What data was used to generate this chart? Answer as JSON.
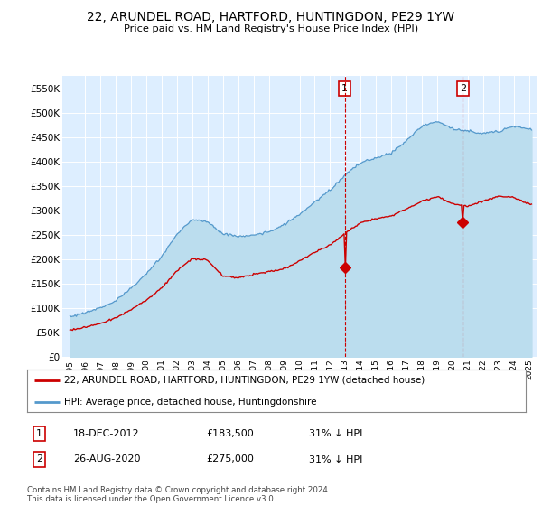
{
  "title": "22, ARUNDEL ROAD, HARTFORD, HUNTINGDON, PE29 1YW",
  "subtitle": "Price paid vs. HM Land Registry's House Price Index (HPI)",
  "ylim": [
    0,
    575000
  ],
  "yticks": [
    0,
    50000,
    100000,
    150000,
    200000,
    250000,
    300000,
    350000,
    400000,
    450000,
    500000,
    550000
  ],
  "ytick_labels": [
    "£0",
    "£50K",
    "£100K",
    "£150K",
    "£200K",
    "£250K",
    "£300K",
    "£350K",
    "£400K",
    "£450K",
    "£500K",
    "£550K"
  ],
  "plot_bg_color": "#ddeeff",
  "hpi_color": "#5599cc",
  "hpi_fill_color": "#bbddee",
  "price_color": "#cc0000",
  "grid_color": "#ffffff",
  "marker1_t": 17.97,
  "marker1_v": 183500,
  "marker2_t": 25.67,
  "marker2_v": 275000,
  "legend_line1": "22, ARUNDEL ROAD, HARTFORD, HUNTINGDON, PE29 1YW (detached house)",
  "legend_line2": "HPI: Average price, detached house, Huntingdonshire",
  "table_row1": [
    "1",
    "18-DEC-2012",
    "£183,500",
    "31% ↓ HPI"
  ],
  "table_row2": [
    "2",
    "26-AUG-2020",
    "£275,000",
    "31% ↓ HPI"
  ],
  "footnote": "Contains HM Land Registry data © Crown copyright and database right 2024.\nThis data is licensed under the Open Government Licence v3.0.",
  "hpi_key_t": [
    0,
    1,
    2,
    3,
    4,
    5,
    6,
    7,
    8,
    9,
    10,
    11,
    12,
    13,
    14,
    15,
    16,
    17,
    18,
    19,
    20,
    21,
    22,
    23,
    24,
    25,
    26,
    27,
    28,
    29,
    30
  ],
  "hpi_key_v": [
    82000,
    90000,
    100000,
    115000,
    140000,
    170000,
    205000,
    250000,
    280000,
    275000,
    250000,
    245000,
    248000,
    255000,
    268000,
    290000,
    315000,
    340000,
    370000,
    395000,
    405000,
    415000,
    440000,
    470000,
    480000,
    465000,
    460000,
    455000,
    460000,
    470000,
    465000
  ],
  "price_key_t": [
    0,
    1,
    2,
    3,
    4,
    5,
    6,
    7,
    8,
    9,
    10,
    11,
    12,
    13,
    14,
    15,
    16,
    17,
    18,
    19,
    20,
    21,
    22,
    23,
    24,
    25,
    26,
    27,
    28,
    29,
    30
  ],
  "price_key_v": [
    55000,
    60000,
    68000,
    78000,
    95000,
    115000,
    140000,
    175000,
    200000,
    197000,
    165000,
    162000,
    168000,
    175000,
    180000,
    197000,
    215000,
    230000,
    255000,
    275000,
    285000,
    290000,
    305000,
    320000,
    330000,
    315000,
    310000,
    320000,
    330000,
    328000,
    315000
  ]
}
